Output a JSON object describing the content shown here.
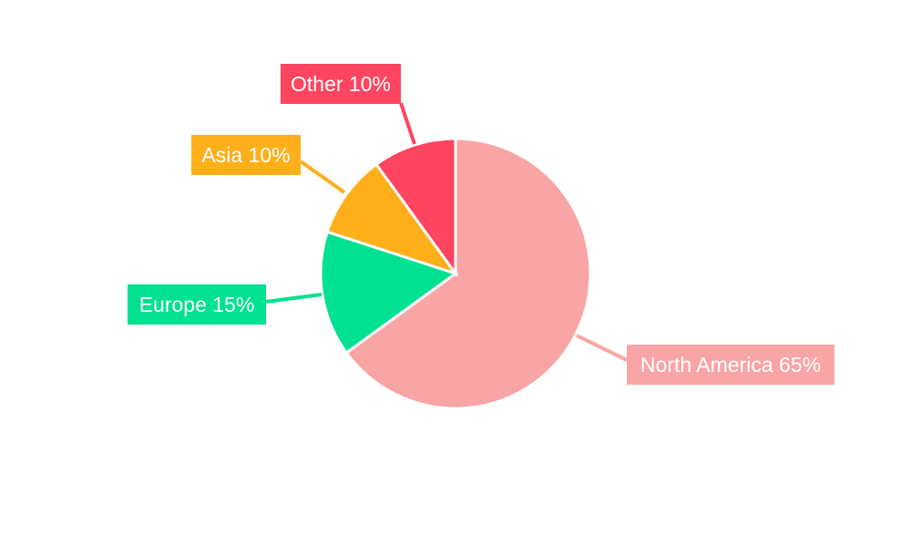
{
  "chart_data": {
    "type": "pie",
    "title": "",
    "slices": [
      {
        "label": "North America",
        "value": 65,
        "text": "North America 65%",
        "color": "#F9A5A5"
      },
      {
        "label": "Europe",
        "value": 15,
        "text": "Europe 15%",
        "color": "#00E291"
      },
      {
        "label": "Asia",
        "value": 10,
        "text": "Asia 10%",
        "color": "#FFAF19"
      },
      {
        "label": "Other",
        "value": 10,
        "text": "Other 10%",
        "color": "#FF4560"
      }
    ],
    "start_angle_deg": 0,
    "direction": "clockwise",
    "legend": "none",
    "labels": "outside-with-leader-lines"
  }
}
